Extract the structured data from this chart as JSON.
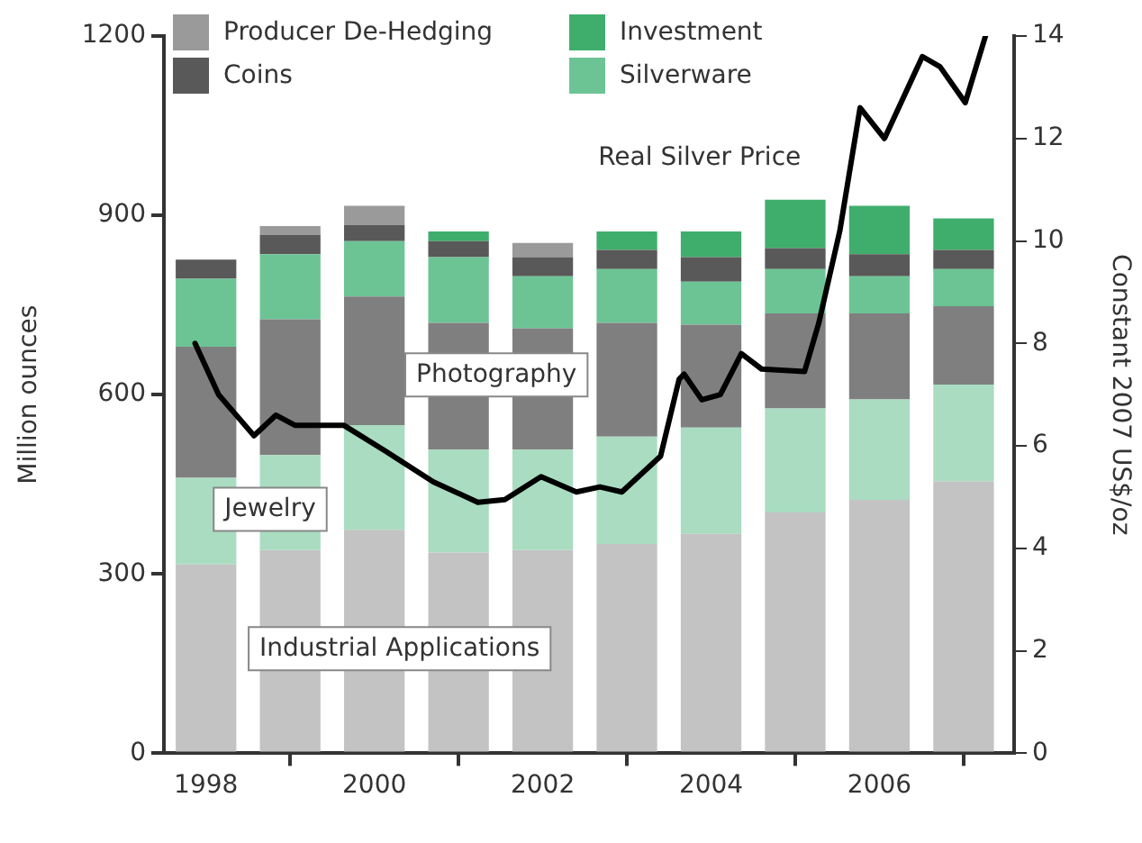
{
  "chart_data": {
    "type": "bar",
    "stacked": true,
    "x": [
      1998,
      1999,
      2000,
      2001,
      2002,
      2003,
      2004,
      2005,
      2006,
      2007
    ],
    "xlim": [
      1997.5,
      2007.6
    ],
    "xticks": [
      1998,
      2000,
      2002,
      2004,
      2006
    ],
    "ylabel": "Million ounces",
    "y2label": "Constant 2007 US$/oz",
    "ylim": [
      0,
      1200
    ],
    "yticks": [
      0,
      300,
      600,
      900,
      1200
    ],
    "y2lim": [
      0,
      14
    ],
    "y2ticks": [
      0,
      2,
      4,
      6,
      8,
      10,
      12,
      14
    ],
    "grid": false,
    "legend": "top left",
    "series": [
      {
        "color": "#c3c3c3",
        "values": [
          316,
          340,
          374,
          336,
          340,
          350,
          367,
          403,
          424,
          455
        ]
      },
      {
        "color": "#a9dcc1",
        "values": [
          145,
          159,
          175,
          172,
          168,
          180,
          178,
          174,
          168,
          162
        ]
      },
      {
        "color": "#7f7f7f",
        "values": [
          219,
          227,
          215,
          212,
          203,
          190,
          172,
          159,
          144,
          131
        ]
      },
      {
        "name": "Silverware",
        "color": "#6cc495",
        "values": [
          114,
          109,
          93,
          110,
          87,
          90,
          72,
          74,
          62,
          62
        ]
      },
      {
        "name": "Coins",
        "color": "#595959",
        "values": [
          32,
          32,
          27,
          27,
          32,
          32,
          41,
          35,
          37,
          32
        ]
      },
      {
        "name": "Investment",
        "color": "#3fae6c",
        "values": [
          null,
          null,
          null,
          16,
          null,
          31,
          43,
          81,
          81,
          53
        ]
      },
      {
        "name": "Producer De-Hedging",
        "color": "#9a9a9a",
        "values": [
          null,
          15,
          32,
          null,
          24,
          null,
          null,
          null,
          null,
          null
        ]
      },
      {
        "type": "line",
        "axis": "y2",
        "color": "#000000",
        "marker": "none",
        "line_style": "solid",
        "x": [
          1997.87,
          1998.15,
          1998.57,
          1998.83,
          1999.06,
          1999.64,
          2000.13,
          2000.7,
          2001.23,
          2001.55,
          2001.98,
          2002.4,
          2002.68,
          2002.94,
          2003.4,
          2003.62,
          2003.68,
          2003.89,
          2004.11,
          2004.36,
          2004.6,
          2005.11,
          2005.28,
          2005.53,
          2005.77,
          2006.06,
          2006.51,
          2006.72,
          2007.02,
          2007.26
        ],
        "values": [
          8.0,
          7.0,
          6.2,
          6.6,
          6.4,
          6.4,
          5.9,
          5.3,
          4.9,
          4.95,
          5.4,
          5.1,
          5.2,
          5.1,
          5.8,
          7.3,
          7.4,
          6.9,
          7.0,
          7.8,
          7.5,
          7.45,
          8.4,
          10.2,
          12.6,
          12.0,
          13.6,
          13.4,
          12.7,
          14.0
        ]
      }
    ],
    "annotations": [
      {
        "text": "Photography",
        "x": 2001.45,
        "y": 633
      },
      "Jewelry",
      {
        "text": "Industrial Applications",
        "x": 2000.3,
        "y": 175
      },
      "Real Silver Price"
    ]
  }
}
